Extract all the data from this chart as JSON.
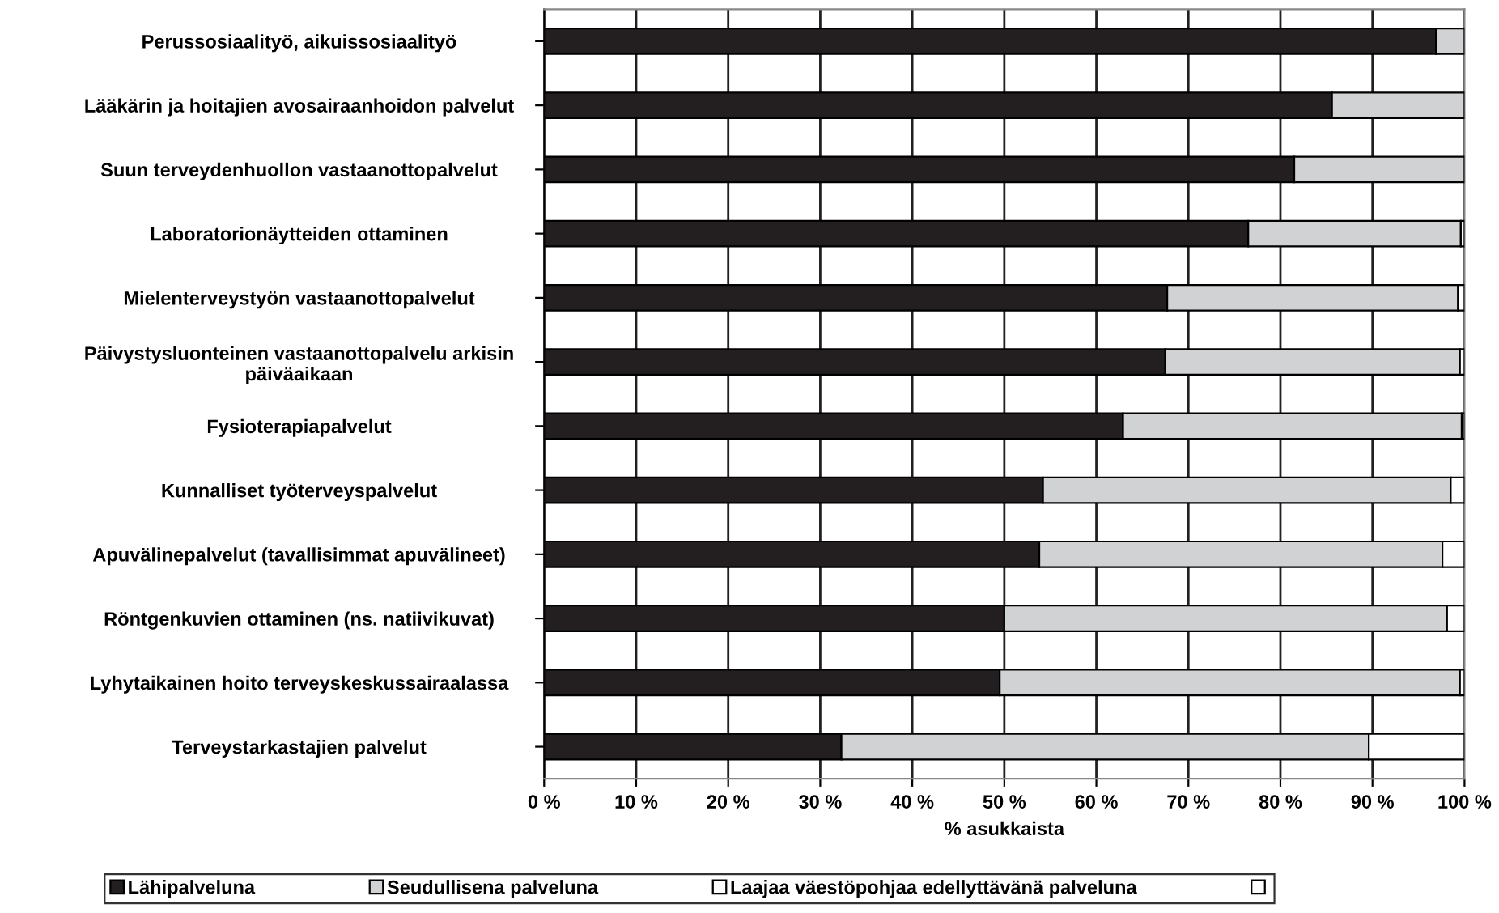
{
  "chart_data": {
    "type": "bar",
    "orientation": "horizontal",
    "stacked": true,
    "xlabel": "% asukkaista",
    "grid": "x",
    "legend": "bottom",
    "categories": [
      "Perussosiaalityö, aikuissosiaalityö",
      "Lääkärin ja hoitajien avosairaanhoidon palvelut",
      "Suun terveydenhuollon vastaanottopalvelut",
      "Laboratorionäytteiden ottaminen",
      "Mielenterveystyön vastaanottopalvelut",
      "Päivystysluonteinen vastaanottopalvelu arkisin\npäiväaikaan",
      "Fysioterapiapalvelut",
      "Kunnalliset työterveyspalvelut",
      "Apuvälinepalvelut (tavallisimmat apuvälineet)",
      "Röntgenkuvien ottaminen (ns. natiivikuvat)",
      "Lyhytaikainen hoito terveyskeskussairaalassa",
      "Terveystarkastajien palvelut"
    ],
    "xlim": [
      0,
      100
    ],
    "xticks": [
      {
        "value": 0,
        "label": "0 %"
      },
      {
        "value": 10,
        "label": "10 %"
      },
      {
        "value": 20,
        "label": "20 %"
      },
      {
        "value": 30,
        "label": "30 %"
      },
      {
        "value": 40,
        "label": "40 %"
      },
      {
        "value": 50,
        "label": "50 %"
      },
      {
        "value": 60,
        "label": "60 %"
      },
      {
        "value": 70,
        "label": "70 %"
      },
      {
        "value": 80,
        "label": "80 %"
      },
      {
        "value": 90,
        "label": "90 %"
      },
      {
        "value": 100,
        "label": "100 %"
      }
    ],
    "series": [
      {
        "name": "Lähipalveluna",
        "color": "#231f20",
        "values": [
          96.9,
          85.6,
          81.5,
          76.5,
          67.7,
          67.5,
          62.9,
          54.2,
          53.8,
          50.0,
          49.5,
          32.3
        ]
      },
      {
        "name": "Seudullisena palveluna",
        "color": "#d1d2d4",
        "values": [
          3.1,
          14.4,
          18.5,
          23.1,
          31.6,
          32.0,
          36.8,
          44.3,
          43.8,
          48.1,
          50.0,
          57.3
        ]
      },
      {
        "name": "Laajaa väestöpohjaa edellyttävänä palveluna",
        "color": "#ffffff",
        "values": [
          0,
          0,
          0,
          0.4,
          0.7,
          0.5,
          0.3,
          1.5,
          2.4,
          1.9,
          0.5,
          10.4
        ]
      },
      {
        "color": "#ffffff",
        "values": [
          null,
          null,
          null,
          null,
          null,
          null,
          null,
          null,
          null,
          null,
          null,
          null
        ]
      }
    ]
  }
}
